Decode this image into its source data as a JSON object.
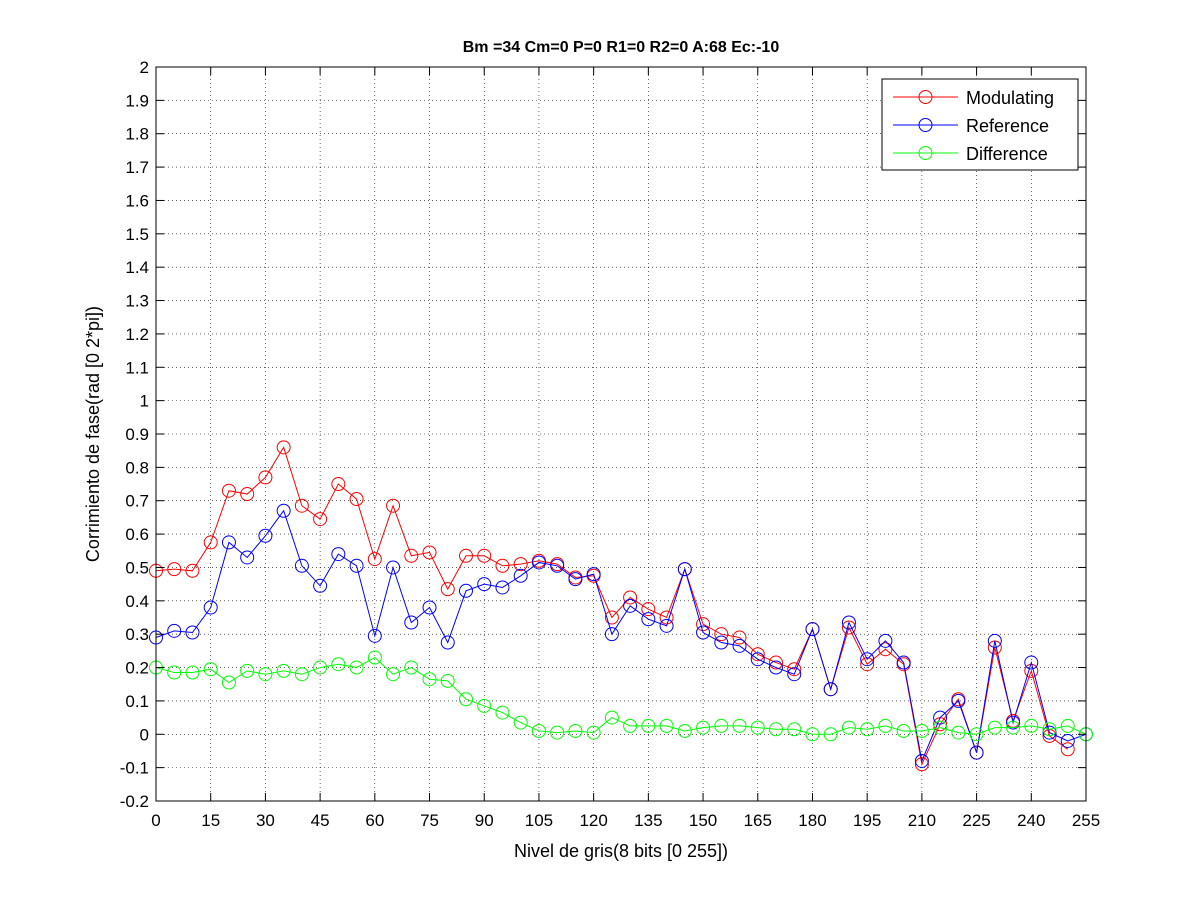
{
  "chart_data": {
    "type": "line",
    "title": "Bm =34  Cm=0  P=0  R1=0  R2=0  A:68  Ec:-10",
    "xlabel": "Nivel de gris(8 bits [0 255])",
    "ylabel": "Corrimiento de fase(rad [0 2*pi])",
    "xlim": [
      0,
      255
    ],
    "ylim": [
      -0.2,
      2
    ],
    "xticks": [
      0,
      15,
      30,
      45,
      60,
      75,
      90,
      105,
      120,
      135,
      150,
      165,
      180,
      195,
      210,
      225,
      240,
      255
    ],
    "yticks": [
      -0.2,
      -0.1,
      0,
      0.1,
      0.2,
      0.3,
      0.4,
      0.5,
      0.6,
      0.7,
      0.8,
      0.9,
      1,
      1.1,
      1.2,
      1.3,
      1.4,
      1.5,
      1.6,
      1.7,
      1.8,
      1.9,
      2
    ],
    "ytick_labels": [
      "-0.2",
      "-0.1",
      "0",
      "0.1",
      "0.2",
      "0.3",
      "0.4",
      "0.5",
      "0.6",
      "0.7",
      "0.8",
      "0.9",
      "1",
      "1.1",
      "1.2",
      "1.3",
      "1.4",
      "1.5",
      "1.6",
      "1.7",
      "1.8",
      "1.9",
      "2"
    ],
    "grid": true,
    "grid_style": "dotted",
    "legend_position": "top-right",
    "marker": "circle",
    "x": [
      0,
      5,
      10,
      15,
      20,
      25,
      30,
      35,
      40,
      45,
      50,
      55,
      60,
      65,
      70,
      75,
      80,
      85,
      90,
      95,
      100,
      105,
      110,
      115,
      120,
      125,
      130,
      135,
      140,
      145,
      150,
      155,
      160,
      165,
      170,
      175,
      180,
      185,
      190,
      195,
      200,
      205,
      210,
      215,
      220,
      225,
      230,
      235,
      240,
      245,
      250,
      255
    ],
    "series": [
      {
        "name": "Modulating",
        "color": "#ff0000",
        "x": [
          0,
          5,
          10,
          15,
          20,
          25,
          30,
          35,
          40,
          45,
          50,
          55,
          60,
          65,
          70,
          75,
          80,
          85,
          90,
          95,
          100,
          105,
          110,
          115,
          120,
          125,
          130,
          135,
          140,
          145,
          150,
          155,
          160,
          165,
          170,
          175,
          180,
          185,
          190,
          195,
          200,
          205,
          210,
          215,
          220,
          225,
          230,
          235,
          240,
          245,
          250
        ],
        "values": [
          0.49,
          0.495,
          0.49,
          0.575,
          0.73,
          0.72,
          0.77,
          0.86,
          0.685,
          0.645,
          0.75,
          0.705,
          0.525,
          0.685,
          0.535,
          0.545,
          0.435,
          0.535,
          0.535,
          0.505,
          0.51,
          0.52,
          0.51,
          0.47,
          0.475,
          0.35,
          0.41,
          0.375,
          0.35,
          0.495,
          0.33,
          0.3,
          0.29,
          0.24,
          0.215,
          0.195,
          0.315,
          0.135,
          0.32,
          0.21,
          0.255,
          0.21,
          -0.09,
          0.03,
          0.105,
          -0.055,
          0.26,
          0.04,
          0.19,
          -0.005,
          -0.045
        ]
      },
      {
        "name": "Reference",
        "color": "#0000ff",
        "x": [
          0,
          5,
          10,
          15,
          20,
          25,
          30,
          35,
          40,
          45,
          50,
          55,
          60,
          65,
          70,
          75,
          80,
          85,
          90,
          95,
          100,
          105,
          110,
          115,
          120,
          125,
          130,
          135,
          140,
          145,
          150,
          155,
          160,
          165,
          170,
          175,
          180,
          185,
          190,
          195,
          200,
          205,
          210,
          215,
          220,
          225,
          230,
          235,
          240,
          245,
          250,
          255
        ],
        "values": [
          0.29,
          0.31,
          0.305,
          0.38,
          0.575,
          0.53,
          0.595,
          0.67,
          0.505,
          0.445,
          0.54,
          0.505,
          0.295,
          0.5,
          0.335,
          0.38,
          0.275,
          0.43,
          0.45,
          0.44,
          0.475,
          0.515,
          0.505,
          0.465,
          0.48,
          0.3,
          0.385,
          0.345,
          0.325,
          0.495,
          0.305,
          0.275,
          0.265,
          0.225,
          0.2,
          0.18,
          0.315,
          0.135,
          0.335,
          0.225,
          0.28,
          0.215,
          -0.08,
          0.05,
          0.1,
          -0.055,
          0.28,
          0.035,
          0.215,
          0.005,
          -0.02,
          0.0
        ]
      },
      {
        "name": "Difference",
        "color": "#00ff00",
        "x": [
          0,
          5,
          10,
          15,
          20,
          25,
          30,
          35,
          40,
          45,
          50,
          55,
          60,
          65,
          70,
          75,
          80,
          85,
          90,
          95,
          100,
          105,
          110,
          115,
          120,
          125,
          130,
          135,
          140,
          145,
          150,
          155,
          160,
          165,
          170,
          175,
          180,
          185,
          190,
          195,
          200,
          205,
          210,
          215,
          220,
          225,
          230,
          235,
          240,
          245,
          250,
          255
        ],
        "values": [
          0.2,
          0.185,
          0.185,
          0.195,
          0.155,
          0.19,
          0.18,
          0.19,
          0.18,
          0.2,
          0.21,
          0.2,
          0.23,
          0.18,
          0.2,
          0.165,
          0.16,
          0.105,
          0.085,
          0.065,
          0.035,
          0.01,
          0.005,
          0.01,
          0.005,
          0.05,
          0.025,
          0.025,
          0.025,
          0.01,
          0.02,
          0.025,
          0.025,
          0.02,
          0.015,
          0.015,
          0.0,
          0.0,
          0.02,
          0.015,
          0.025,
          0.01,
          0.01,
          0.02,
          0.005,
          0.0,
          0.02,
          0.02,
          0.025,
          0.015,
          0.025,
          0.0
        ]
      }
    ]
  }
}
